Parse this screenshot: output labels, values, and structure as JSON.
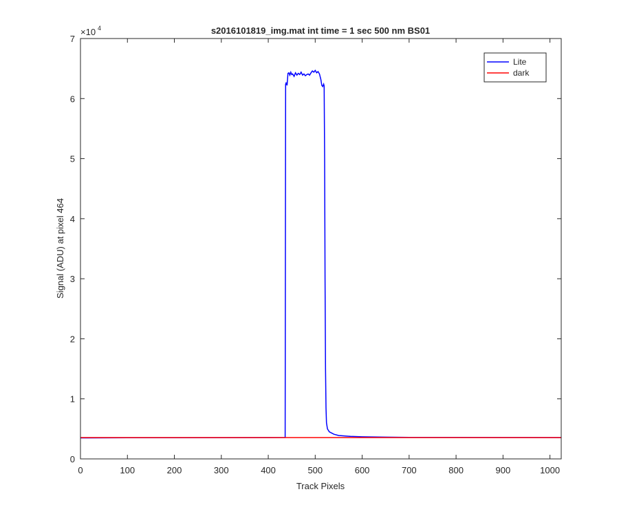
{
  "chart_data": {
    "type": "line",
    "title": "s2016101819_img.mat int time = 1 sec  500 nm BS01",
    "xlabel": "Track Pixels",
    "ylabel": "Signal (ADU) at pixel 464",
    "y_exponent_label": "×10",
    "y_exponent_power": "4",
    "xlim": [
      0,
      1024
    ],
    "ylim": [
      0,
      70000
    ],
    "x_ticks": [
      0,
      100,
      200,
      300,
      400,
      500,
      600,
      700,
      800,
      900,
      1000
    ],
    "x_tick_labels": [
      "0",
      "100",
      "200",
      "300",
      "400",
      "500",
      "600",
      "700",
      "800",
      "900",
      "1000"
    ],
    "y_ticks": [
      0,
      10000,
      20000,
      30000,
      40000,
      50000,
      60000,
      70000
    ],
    "y_tick_labels": [
      "0",
      "1",
      "2",
      "3",
      "4",
      "5",
      "6",
      "7"
    ],
    "grid": false,
    "legend_position": "top-right",
    "series": [
      {
        "name": "Lite",
        "color": "#0000ff",
        "x": [
          0,
          100,
          200,
          300,
          400,
          436,
          437,
          438,
          440,
          442,
          444,
          446,
          448,
          450,
          452,
          455,
          458,
          461,
          464,
          467,
          470,
          473,
          476,
          479,
          482,
          485,
          488,
          491,
          494,
          497,
          500,
          503,
          506,
          509,
          512,
          514,
          516,
          518,
          519,
          520,
          521,
          522,
          523,
          524,
          526,
          530,
          540,
          550,
          575,
          600,
          650,
          700,
          800,
          900,
          1024
        ],
        "y": [
          3500,
          3520,
          3530,
          3540,
          3550,
          3560,
          62400,
          62600,
          62200,
          64200,
          64300,
          63900,
          64400,
          64000,
          64100,
          63700,
          64300,
          63900,
          64200,
          64000,
          64400,
          63900,
          64100,
          63800,
          64000,
          64100,
          63900,
          64300,
          64600,
          64400,
          64700,
          64300,
          64500,
          64100,
          63200,
          62200,
          62000,
          62400,
          62100,
          50000,
          30000,
          15000,
          8500,
          6000,
          5000,
          4500,
          4100,
          3900,
          3750,
          3680,
          3620,
          3590,
          3570,
          3560,
          3550
        ]
      },
      {
        "name": "dark",
        "color": "#ff0000",
        "x": [
          0,
          1024
        ],
        "y": [
          3550,
          3550
        ]
      }
    ]
  }
}
